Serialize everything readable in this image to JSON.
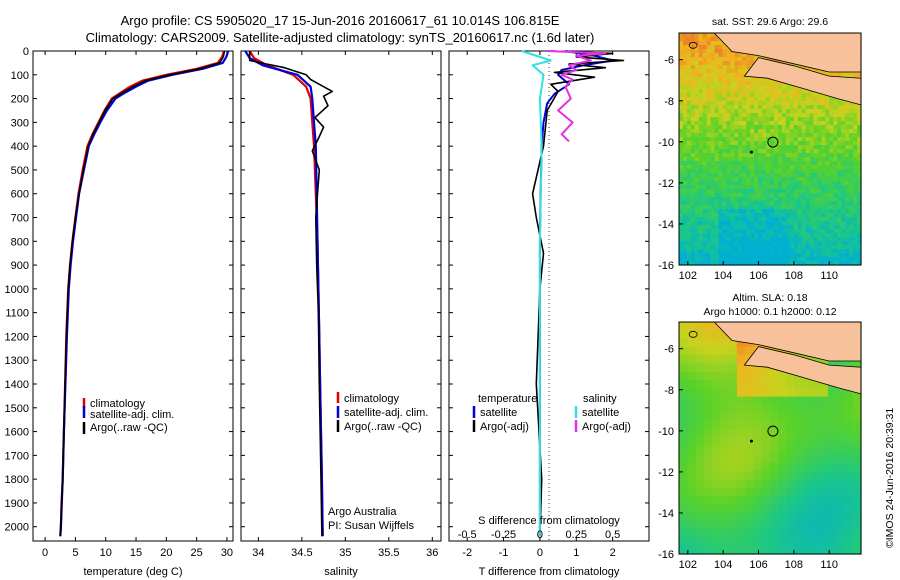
{
  "header": {
    "line1": "Argo profile: CS 5905020_17 15-Jun-2016 20160617_61 10.014S 106.815E",
    "line2": "Climatology: CARS2009. Satellite-adjusted climatology: synTS_20160617.nc (1.6d later)"
  },
  "depth_ticks": [
    "0",
    "100",
    "200",
    "300",
    "400",
    "500",
    "600",
    "700",
    "800",
    "900",
    "1000",
    "1100",
    "1200",
    "1300",
    "1400",
    "1500",
    "1600",
    "1700",
    "1800",
    "1900",
    "2000"
  ],
  "chart_data": [
    {
      "type": "line",
      "id": "temperature",
      "xlabel": "temperature (deg C)",
      "x_ticks": [
        "0",
        "5",
        "10",
        "15",
        "20",
        "25",
        "30"
      ],
      "xlim": [
        -2,
        31
      ],
      "ylim": [
        2060,
        0
      ],
      "legend": [
        "climatology",
        "satellite-adj. clim.",
        "Argo(..raw -QC)"
      ],
      "colors": {
        "climatology": "#e00000",
        "satellite": "#0000dd",
        "argo": "#000000"
      },
      "series": [
        {
          "name": "climatology",
          "x": [
            29.5,
            29.2,
            28.5,
            25,
            20,
            16,
            14,
            12.5,
            11,
            9.8,
            8.8,
            7.8,
            7.0,
            6.2,
            5.5,
            5.0,
            4.5,
            4.1,
            3.8,
            3.5,
            3.3,
            3.1,
            2.9,
            2.7,
            2.6,
            2.5
          ],
          "y": [
            0,
            25,
            50,
            75,
            100,
            125,
            150,
            175,
            200,
            250,
            300,
            350,
            400,
            500,
            600,
            700,
            800,
            900,
            1000,
            1200,
            1400,
            1600,
            1800,
            1900,
            2000,
            2040
          ]
        },
        {
          "name": "satellite-adj. clim.",
          "x": [
            30.2,
            29.9,
            29.3,
            26,
            21,
            17,
            15,
            13.2,
            11.6,
            10.2,
            9.1,
            8.1,
            7.2,
            6.4,
            5.6,
            5.1,
            4.6,
            4.2,
            3.9,
            3.6,
            3.35,
            3.1,
            2.9,
            2.75,
            2.6,
            2.5
          ],
          "y": [
            0,
            25,
            50,
            75,
            100,
            125,
            150,
            175,
            200,
            250,
            300,
            350,
            400,
            500,
            600,
            700,
            800,
            900,
            1000,
            1200,
            1400,
            1600,
            1800,
            1900,
            2000,
            2040
          ]
        },
        {
          "name": "Argo(..raw -QC)",
          "x": [
            29.6,
            29.4,
            28.8,
            25.5,
            20.5,
            16.5,
            14.5,
            12.8,
            11.2,
            9.9,
            8.9,
            7.9,
            7.1,
            6.3,
            5.6,
            5.0,
            4.5,
            4.1,
            3.8,
            3.5,
            3.3,
            3.1,
            2.9,
            2.75,
            2.6,
            2.5
          ],
          "y": [
            0,
            25,
            50,
            75,
            100,
            125,
            150,
            175,
            200,
            250,
            300,
            350,
            400,
            500,
            600,
            700,
            800,
            900,
            1000,
            1200,
            1400,
            1600,
            1800,
            1900,
            2000,
            2040
          ]
        }
      ]
    },
    {
      "type": "line",
      "id": "salinity",
      "xlabel": "salinity",
      "x_ticks": [
        "34",
        "34.5",
        "35",
        "35.5",
        "36"
      ],
      "x_tick_values": [
        34,
        34.5,
        35,
        35.5,
        36
      ],
      "xlim": [
        33.8,
        36.1
      ],
      "ylim": [
        2060,
        0
      ],
      "legend": [
        "climatology",
        "satellite-adj. clim.",
        "Argo(..raw -QC)"
      ],
      "annotation": [
        "Argo Australia",
        "PI: Susan Wijffels"
      ],
      "series": [
        {
          "name": "climatology",
          "x": [
            33.9,
            33.95,
            34.1,
            34.4,
            34.55,
            34.6,
            34.62,
            34.64,
            34.66,
            34.68,
            34.69,
            34.7,
            34.71,
            34.72,
            34.73,
            34.74
          ],
          "y": [
            0,
            30,
            60,
            100,
            150,
            200,
            300,
            400,
            600,
            800,
            1000,
            1200,
            1400,
            1600,
            1800,
            2040
          ]
        },
        {
          "name": "satellite-adj. clim.",
          "x": [
            33.85,
            33.9,
            34.05,
            34.45,
            34.6,
            34.62,
            34.64,
            34.66,
            34.67,
            34.68,
            34.69,
            34.7,
            34.71,
            34.72,
            34.73,
            34.74
          ],
          "y": [
            0,
            30,
            60,
            100,
            150,
            200,
            300,
            400,
            600,
            800,
            1000,
            1200,
            1400,
            1600,
            1800,
            2040
          ]
        },
        {
          "name": "Argo(..raw -QC)",
          "x": [
            33.9,
            33.9,
            34.1,
            34.3,
            34.55,
            34.6,
            34.7,
            34.85,
            34.75,
            34.8,
            34.65,
            34.75,
            34.7,
            34.62,
            34.7,
            34.68,
            34.66,
            34.67,
            34.69,
            34.7,
            34.72,
            34.73
          ],
          "y": [
            0,
            40,
            55,
            70,
            100,
            120,
            140,
            170,
            190,
            230,
            280,
            320,
            360,
            420,
            500,
            600,
            700,
            900,
            1100,
            1400,
            1800,
            2040
          ]
        }
      ]
    },
    {
      "type": "line",
      "id": "difference",
      "xlabel": "T difference from climatology",
      "x_ticks": [
        "-2",
        "-1",
        "0",
        "1",
        "2"
      ],
      "x_tick_values": [
        -2,
        -1,
        0,
        1,
        2
      ],
      "top_label": "S difference from climatology",
      "top_ticks": [
        "-0.5",
        "-0.25",
        "0",
        "0.25",
        "0.5"
      ],
      "top_tick_values": [
        -0.5,
        -0.25,
        0,
        0.25,
        0.5
      ],
      "xlim": [
        -2.5,
        3.0
      ],
      "ylim": [
        2060,
        0
      ],
      "legend_temperature": {
        "title": "temperature",
        "items": [
          "satellite",
          "Argo(-adj)"
        ]
      },
      "legend_salinity": {
        "title": "salinity",
        "items": [
          "satellite",
          "Argo(-adj)"
        ]
      },
      "series": [
        {
          "name": "temperature satellite",
          "x": [
            0.7,
            1.5,
            2.0,
            1.2,
            0.6,
            0.5,
            0.8,
            0.4,
            0.2,
            0.1,
            0.05,
            0.02,
            0,
            0,
            0,
            0
          ],
          "y": [
            0,
            20,
            40,
            60,
            80,
            100,
            140,
            180,
            220,
            300,
            400,
            600,
            800,
            1200,
            1600,
            2040
          ]
        },
        {
          "name": "temperature Argo(-adj)",
          "x": [
            0.3,
            2.0,
            1.0,
            2.3,
            0.8,
            1.8,
            0.4,
            1.5,
            0.3,
            0.5,
            0.2,
            0.1,
            -0.2,
            -0.1,
            0.1,
            0,
            -0.1,
            0.05,
            0
          ],
          "y": [
            0,
            10,
            25,
            40,
            55,
            70,
            90,
            110,
            140,
            170,
            250,
            400,
            600,
            700,
            850,
            1000,
            1400,
            1800,
            2040
          ]
        },
        {
          "name": "salinity satellite",
          "x": [
            -0.5,
            0.3,
            -0.2,
            0.1,
            0,
            0.05,
            0,
            0,
            0
          ],
          "y": [
            0,
            40,
            60,
            100,
            200,
            400,
            800,
            1400,
            2040
          ]
        },
        {
          "name": "salinity Argo(-adj)",
          "x": [
            0.2,
            1.8,
            1.0,
            1.4,
            0.8,
            1.0,
            0.6,
            0.9,
            0.7,
            0.85,
            0.5,
            0.9,
            0.6,
            0.8
          ],
          "y": [
            0,
            10,
            20,
            40,
            60,
            80,
            100,
            120,
            150,
            200,
            250,
            300,
            350,
            380
          ]
        }
      ]
    }
  ],
  "maps": {
    "top": {
      "title": "sat. SST: 29.6  Argo: 29.6",
      "x_ticks": [
        "102",
        "104",
        "106",
        "108",
        "110"
      ],
      "y_ticks": [
        "-6",
        "-8",
        "-10",
        "-12",
        "-14",
        "-16"
      ]
    },
    "bottom": {
      "title1": "Altim. SLA: 0.18",
      "title2": "Argo h1000: 0.1  h2000: 0.12",
      "x_ticks": [
        "102",
        "104",
        "106",
        "108",
        "110"
      ],
      "y_ticks": [
        "-6",
        "-8",
        "-10",
        "-12",
        "-14",
        "-16"
      ]
    }
  },
  "footer": {
    "stamp": "©IMOS 24-Jun-2016 20:39:31"
  }
}
